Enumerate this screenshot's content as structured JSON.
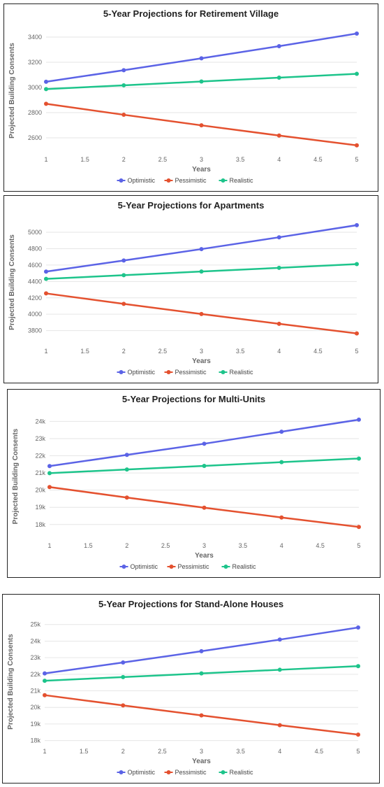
{
  "legend": [
    "Optimistic",
    "Pessimistic",
    "Realistic"
  ],
  "colors": {
    "Optimistic": "#5B63E6",
    "Pessimistic": "#E4512F",
    "Realistic": "#1DC48B"
  },
  "chart_data": [
    {
      "type": "line",
      "title": "5-Year Projections for Retirement Village",
      "xlabel": "Years",
      "ylabel": "Projected Building Consents",
      "x": [
        1,
        2,
        3,
        4,
        5
      ],
      "xticks": [
        "1",
        "1.5",
        "2",
        "2.5",
        "3",
        "3.5",
        "4",
        "4.5",
        "5"
      ],
      "yticks": [
        2600,
        2800,
        3000,
        3200,
        3400
      ],
      "ytick_labels": [
        "2600",
        "2800",
        "3000",
        "3200",
        "3400"
      ],
      "ylim": [
        2500,
        3450
      ],
      "series": [
        {
          "name": "Optimistic",
          "values": [
            3045,
            3137,
            3231,
            3328,
            3428
          ]
        },
        {
          "name": "Pessimistic",
          "values": [
            2870,
            2783,
            2699,
            2618,
            2540
          ]
        },
        {
          "name": "Realistic",
          "values": [
            2987,
            3017,
            3047,
            3078,
            3108
          ]
        }
      ],
      "legend_position": "bottom",
      "grid": true
    },
    {
      "type": "line",
      "title": "5-Year Projections for Apartments",
      "xlabel": "Years",
      "ylabel": "Projected Building Consents",
      "x": [
        1,
        2,
        3,
        4,
        5
      ],
      "xticks": [
        "1",
        "1.5",
        "2",
        "2.5",
        "3",
        "3.5",
        "4",
        "4.5",
        "5"
      ],
      "yticks": [
        3800,
        4000,
        4200,
        4400,
        4600,
        4800,
        5000
      ],
      "ytick_labels": [
        "3800",
        "4000",
        "4200",
        "4400",
        "4600",
        "4800",
        "5000"
      ],
      "ylim": [
        3660,
        5120
      ],
      "series": [
        {
          "name": "Optimistic",
          "values": [
            4520,
            4656,
            4795,
            4939,
            5087
          ]
        },
        {
          "name": "Pessimistic",
          "values": [
            4254,
            4126,
            4003,
            3883,
            3766
          ]
        },
        {
          "name": "Realistic",
          "values": [
            4432,
            4476,
            4521,
            4566,
            4612
          ]
        }
      ],
      "legend_position": "bottom",
      "grid": true
    },
    {
      "type": "line",
      "title": "5-Year Projections for Multi-Units",
      "xlabel": "Years",
      "ylabel": "Projected Building Consents",
      "x": [
        1,
        2,
        3,
        4,
        5
      ],
      "xticks": [
        "1",
        "1.5",
        "2",
        "2.5",
        "3",
        "3.5",
        "4",
        "4.5",
        "5"
      ],
      "yticks": [
        18000,
        19000,
        20000,
        21000,
        22000,
        23000,
        24000
      ],
      "ytick_labels": [
        "18k",
        "19k",
        "20k",
        "21k",
        "22k",
        "23k",
        "24k"
      ],
      "ylim": [
        17300,
        24300
      ],
      "series": [
        {
          "name": "Optimistic",
          "values": [
            21400,
            22050,
            22700,
            23400,
            24100
          ]
        },
        {
          "name": "Pessimistic",
          "values": [
            20180,
            19570,
            18980,
            18410,
            17860
          ]
        },
        {
          "name": "Realistic",
          "values": [
            20990,
            21200,
            21410,
            21630,
            21840
          ]
        }
      ],
      "legend_position": "bottom",
      "grid": true
    },
    {
      "type": "line",
      "title": "5-Year Projections for Stand-Alone Houses",
      "xlabel": "Years",
      "ylabel": "Projected Building Consents",
      "x": [
        1,
        2,
        3,
        4,
        5
      ],
      "xticks": [
        "1",
        "1.5",
        "2",
        "2.5",
        "3",
        "3.5",
        "4",
        "4.5",
        "5"
      ],
      "yticks": [
        18000,
        19000,
        20000,
        21000,
        22000,
        23000,
        24000,
        25000
      ],
      "ytick_labels": [
        "18k",
        "19k",
        "20k",
        "21k",
        "22k",
        "23k",
        "24k",
        "25k"
      ],
      "ylim": [
        17900,
        25200
      ],
      "series": [
        {
          "name": "Optimistic",
          "values": [
            22050,
            22710,
            23390,
            24090,
            24820
          ]
        },
        {
          "name": "Pessimistic",
          "values": [
            20740,
            20120,
            19520,
            18930,
            18360
          ]
        },
        {
          "name": "Realistic",
          "values": [
            21610,
            21830,
            22050,
            22270,
            22490
          ]
        }
      ],
      "legend_position": "bottom",
      "grid": true
    }
  ]
}
